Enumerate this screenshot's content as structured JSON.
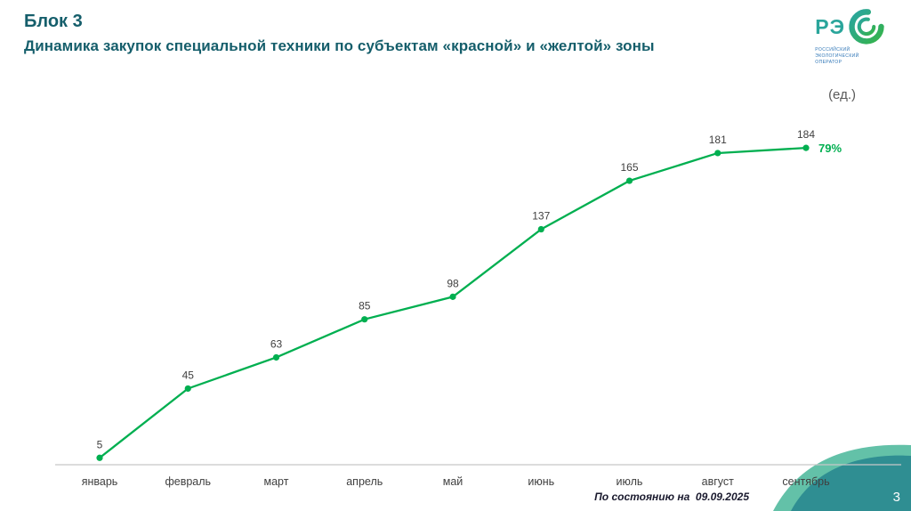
{
  "slide": {
    "block_label": "Блок 3",
    "title": "Динамика закупок специальной техники по субъектам «красной» и «желтой» зоны",
    "unit_label": "(ед.)",
    "footnote": "По состоянию на  09.09.2025",
    "page_number": "3",
    "logo": {
      "letters": "РЭ",
      "caption_lines": [
        "РОССИЙСКИЙ",
        "ЭКОЛОГИЧЕСКИЙ",
        "ОПЕРАТОР"
      ]
    }
  },
  "chart_data": {
    "type": "line",
    "title": "Динамика закупок специальной техники по субъектам «красной» и «желтой» зоны",
    "categories": [
      "январь",
      "февраль",
      "март",
      "апрель",
      "май",
      "июнь",
      "июль",
      "август",
      "сентябрь"
    ],
    "values": [
      5,
      45,
      63,
      85,
      98,
      137,
      165,
      181,
      184
    ],
    "last_point_annotation": "79%",
    "xlabel": "",
    "ylabel": "(ед.)",
    "ylim": [
      0,
      200
    ],
    "grid": false,
    "legend": false,
    "line_color": "#00AF50",
    "annotation_color": "#00AF50"
  },
  "colors": {
    "title": "#155E6B",
    "accent_green": "#00AF50",
    "axis": "#c8c8c8",
    "wave_teal": "#2f8e92",
    "wave_light": "#63c1a8"
  }
}
